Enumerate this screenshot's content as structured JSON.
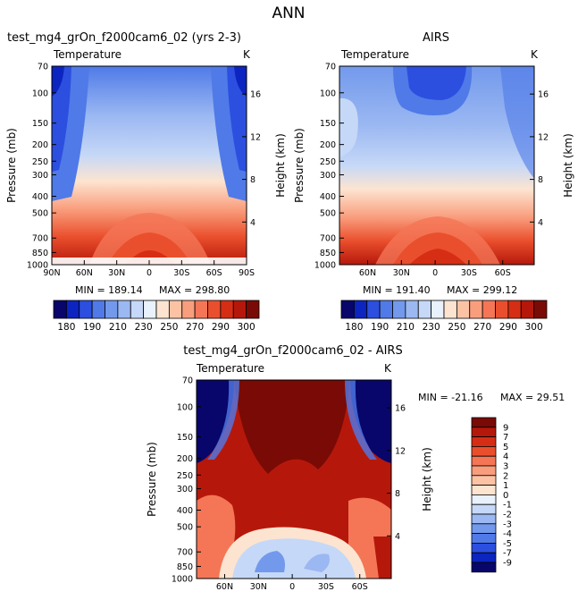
{
  "page_title": "ANN",
  "chart_data": [
    {
      "type": "contour",
      "title": "test_mg4_grOn_f2000cam6_02 (yrs 2-3)",
      "subtitle_left": "Temperature",
      "subtitle_right": "K",
      "xlabel": "",
      "ylabel": "Pressure (mb)",
      "y2label": "Height (km)",
      "x_ticks": [
        "90N",
        "60N",
        "30N",
        "0",
        "30S",
        "60S",
        "90S"
      ],
      "y_ticks": [
        "70",
        "100",
        "150",
        "200",
        "250",
        "300",
        "400",
        "500",
        "700",
        "850",
        "1000"
      ],
      "y2_ticks": [
        "4",
        "8",
        "12",
        "16"
      ],
      "ylim": [
        1000,
        70
      ],
      "min_label": "MIN = 189.14",
      "max_label": "MAX = 298.80",
      "min": 189.14,
      "max": 298.8,
      "colorbar_labels": [
        "180",
        "190",
        "210",
        "230",
        "250",
        "270",
        "290",
        "300"
      ]
    },
    {
      "type": "contour",
      "title": "AIRS",
      "subtitle_left": "Temperature",
      "subtitle_right": "K",
      "xlabel": "",
      "ylabel": "Pressure (mb)",
      "y2label": "Height (km)",
      "x_ticks": [
        "60N",
        "30N",
        "0",
        "30S",
        "60S"
      ],
      "y_ticks": [
        "70",
        "100",
        "150",
        "200",
        "250",
        "300",
        "400",
        "500",
        "700",
        "850",
        "1000"
      ],
      "y2_ticks": [
        "4",
        "8",
        "12",
        "16"
      ],
      "ylim": [
        1000,
        70
      ],
      "min_label": "MIN = 191.40",
      "max_label": "MAX = 299.12",
      "min": 191.4,
      "max": 299.12,
      "colorbar_labels": [
        "180",
        "190",
        "210",
        "230",
        "250",
        "270",
        "290",
        "300"
      ]
    },
    {
      "type": "contour",
      "title": "test_mg4_grOn_f2000cam6_02 - AIRS",
      "subtitle_left": "Temperature",
      "subtitle_right": "K",
      "xlabel": "",
      "ylabel": "Pressure (mb)",
      "y2label": "Height (km)",
      "x_ticks": [
        "60N",
        "30N",
        "0",
        "30S",
        "60S"
      ],
      "y_ticks": [
        "70",
        "100",
        "150",
        "200",
        "250",
        "300",
        "400",
        "500",
        "700",
        "850",
        "1000"
      ],
      "y2_ticks": [
        "4",
        "8",
        "12",
        "16"
      ],
      "ylim": [
        1000,
        70
      ],
      "min_label": "MIN = -21.16",
      "max_label": "MAX =  29.51",
      "min": -21.16,
      "max": 29.51,
      "colorbar_labels": [
        "9",
        "7",
        "5",
        "4",
        "3",
        "2",
        "1",
        "0",
        "-1",
        "-2",
        "-3",
        "-4",
        "-5",
        "-7",
        "-9"
      ]
    }
  ],
  "colors": {
    "abs_scale": [
      "#08066b",
      "#0c24c0",
      "#2c4fe0",
      "#4f7ae8",
      "#7399ec",
      "#9bb8f2",
      "#c6d8f7",
      "#e8f1fc",
      "#fde4d0",
      "#fbc3a4",
      "#f99e7d",
      "#f47656",
      "#ea4f2d",
      "#d62e14",
      "#b5180b",
      "#7a0a05"
    ],
    "diff_scale": [
      "#7a0a05",
      "#b5180b",
      "#d62e14",
      "#ea4f2d",
      "#f47656",
      "#f99e7d",
      "#fbc3a4",
      "#fde4d0",
      "#e8f1fc",
      "#c6d8f7",
      "#9bb8f2",
      "#7399ec",
      "#4f7ae8",
      "#2c4fe0",
      "#0c24c0",
      "#08066b"
    ]
  }
}
